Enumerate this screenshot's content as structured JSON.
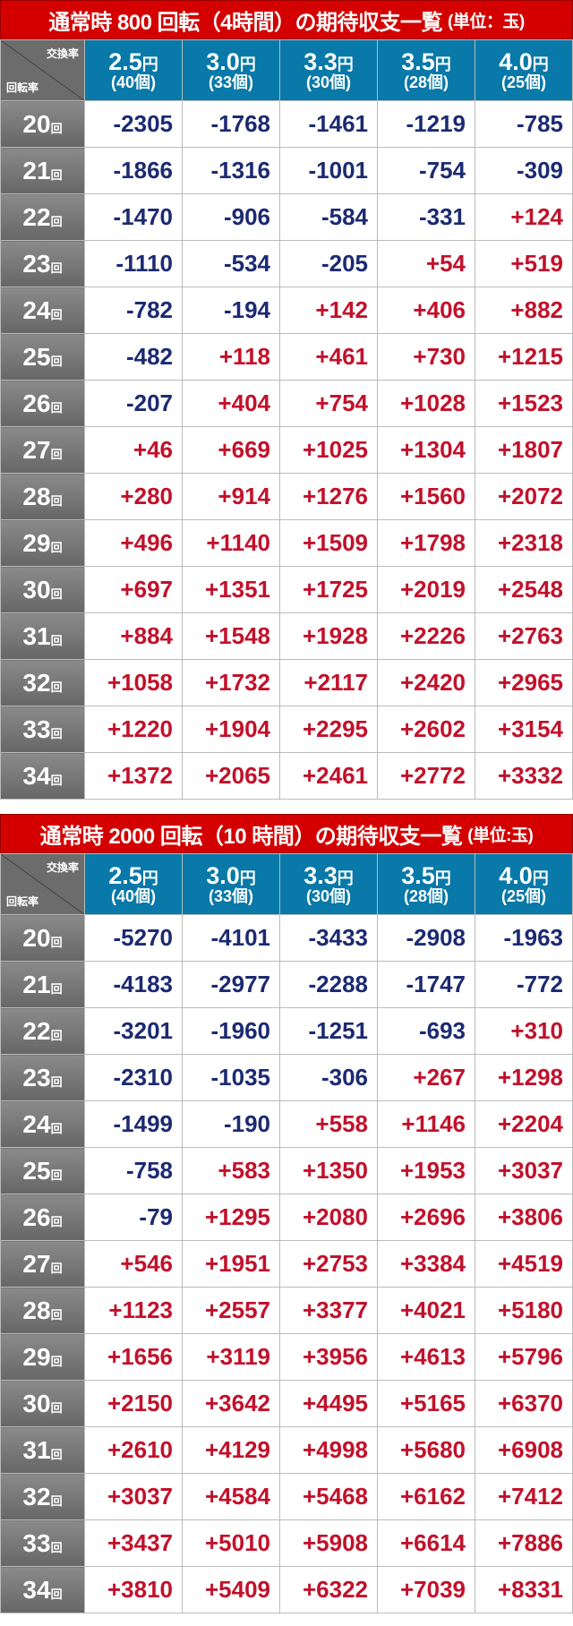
{
  "colors": {
    "title_bg": "#d40000",
    "header_bg": "#0879a8",
    "label_bg": "#777777",
    "negative": "#1c2a72",
    "positive": "#c2112b"
  },
  "corner": {
    "top": "交換率",
    "bottom": "回転率"
  },
  "columns": [
    {
      "rate": "2.5",
      "yen": "円",
      "count": "(40個)"
    },
    {
      "rate": "3.0",
      "yen": "円",
      "count": "(33個)"
    },
    {
      "rate": "3.3",
      "yen": "円",
      "count": "(30個)"
    },
    {
      "rate": "3.5",
      "yen": "円",
      "count": "(28個)"
    },
    {
      "rate": "4.0",
      "yen": "円",
      "count": "(25個)"
    }
  ],
  "row_suffix": "回",
  "tables": [
    {
      "title": "通常時 800 回転（4時間）の期待収支一覧",
      "unit": "(単位：玉)",
      "rows": [
        {
          "label": "20",
          "values": [
            "-2305",
            "-1768",
            "-1461",
            "-1219",
            "-785"
          ]
        },
        {
          "label": "21",
          "values": [
            "-1866",
            "-1316",
            "-1001",
            "-754",
            "-309"
          ]
        },
        {
          "label": "22",
          "values": [
            "-1470",
            "-906",
            "-584",
            "-331",
            "+124"
          ]
        },
        {
          "label": "23",
          "values": [
            "-1110",
            "-534",
            "-205",
            "+54",
            "+519"
          ]
        },
        {
          "label": "24",
          "values": [
            "-782",
            "-194",
            "+142",
            "+406",
            "+882"
          ]
        },
        {
          "label": "25",
          "values": [
            "-482",
            "+118",
            "+461",
            "+730",
            "+1215"
          ]
        },
        {
          "label": "26",
          "values": [
            "-207",
            "+404",
            "+754",
            "+1028",
            "+1523"
          ]
        },
        {
          "label": "27",
          "values": [
            "+46",
            "+669",
            "+1025",
            "+1304",
            "+1807"
          ]
        },
        {
          "label": "28",
          "values": [
            "+280",
            "+914",
            "+1276",
            "+1560",
            "+2072"
          ]
        },
        {
          "label": "29",
          "values": [
            "+496",
            "+1140",
            "+1509",
            "+1798",
            "+2318"
          ]
        },
        {
          "label": "30",
          "values": [
            "+697",
            "+1351",
            "+1725",
            "+2019",
            "+2548"
          ]
        },
        {
          "label": "31",
          "values": [
            "+884",
            "+1548",
            "+1928",
            "+2226",
            "+2763"
          ]
        },
        {
          "label": "32",
          "values": [
            "+1058",
            "+1732",
            "+2117",
            "+2420",
            "+2965"
          ]
        },
        {
          "label": "33",
          "values": [
            "+1220",
            "+1904",
            "+2295",
            "+2602",
            "+3154"
          ]
        },
        {
          "label": "34",
          "values": [
            "+1372",
            "+2065",
            "+2461",
            "+2772",
            "+3332"
          ]
        }
      ]
    },
    {
      "title": "通常時 2000 回転（10 時間）の期待収支一覧",
      "unit": "(単位:玉)",
      "rows": [
        {
          "label": "20",
          "values": [
            "-5270",
            "-4101",
            "-3433",
            "-2908",
            "-1963"
          ]
        },
        {
          "label": "21",
          "values": [
            "-4183",
            "-2977",
            "-2288",
            "-1747",
            "-772"
          ]
        },
        {
          "label": "22",
          "values": [
            "-3201",
            "-1960",
            "-1251",
            "-693",
            "+310"
          ]
        },
        {
          "label": "23",
          "values": [
            "-2310",
            "-1035",
            "-306",
            "+267",
            "+1298"
          ]
        },
        {
          "label": "24",
          "values": [
            "-1499",
            "-190",
            "+558",
            "+1146",
            "+2204"
          ]
        },
        {
          "label": "25",
          "values": [
            "-758",
            "+583",
            "+1350",
            "+1953",
            "+3037"
          ]
        },
        {
          "label": "26",
          "values": [
            "-79",
            "+1295",
            "+2080",
            "+2696",
            "+3806"
          ]
        },
        {
          "label": "27",
          "values": [
            "+546",
            "+1951",
            "+2753",
            "+3384",
            "+4519"
          ]
        },
        {
          "label": "28",
          "values": [
            "+1123",
            "+2557",
            "+3377",
            "+4021",
            "+5180"
          ]
        },
        {
          "label": "29",
          "values": [
            "+1656",
            "+3119",
            "+3956",
            "+4613",
            "+5796"
          ]
        },
        {
          "label": "30",
          "values": [
            "+2150",
            "+3642",
            "+4495",
            "+5165",
            "+6370"
          ]
        },
        {
          "label": "31",
          "values": [
            "+2610",
            "+4129",
            "+4998",
            "+5680",
            "+6908"
          ]
        },
        {
          "label": "32",
          "values": [
            "+3037",
            "+4584",
            "+5468",
            "+6162",
            "+7412"
          ]
        },
        {
          "label": "33",
          "values": [
            "+3437",
            "+5010",
            "+5908",
            "+6614",
            "+7886"
          ]
        },
        {
          "label": "34",
          "values": [
            "+3810",
            "+5409",
            "+6322",
            "+7039",
            "+8331"
          ]
        }
      ]
    }
  ]
}
